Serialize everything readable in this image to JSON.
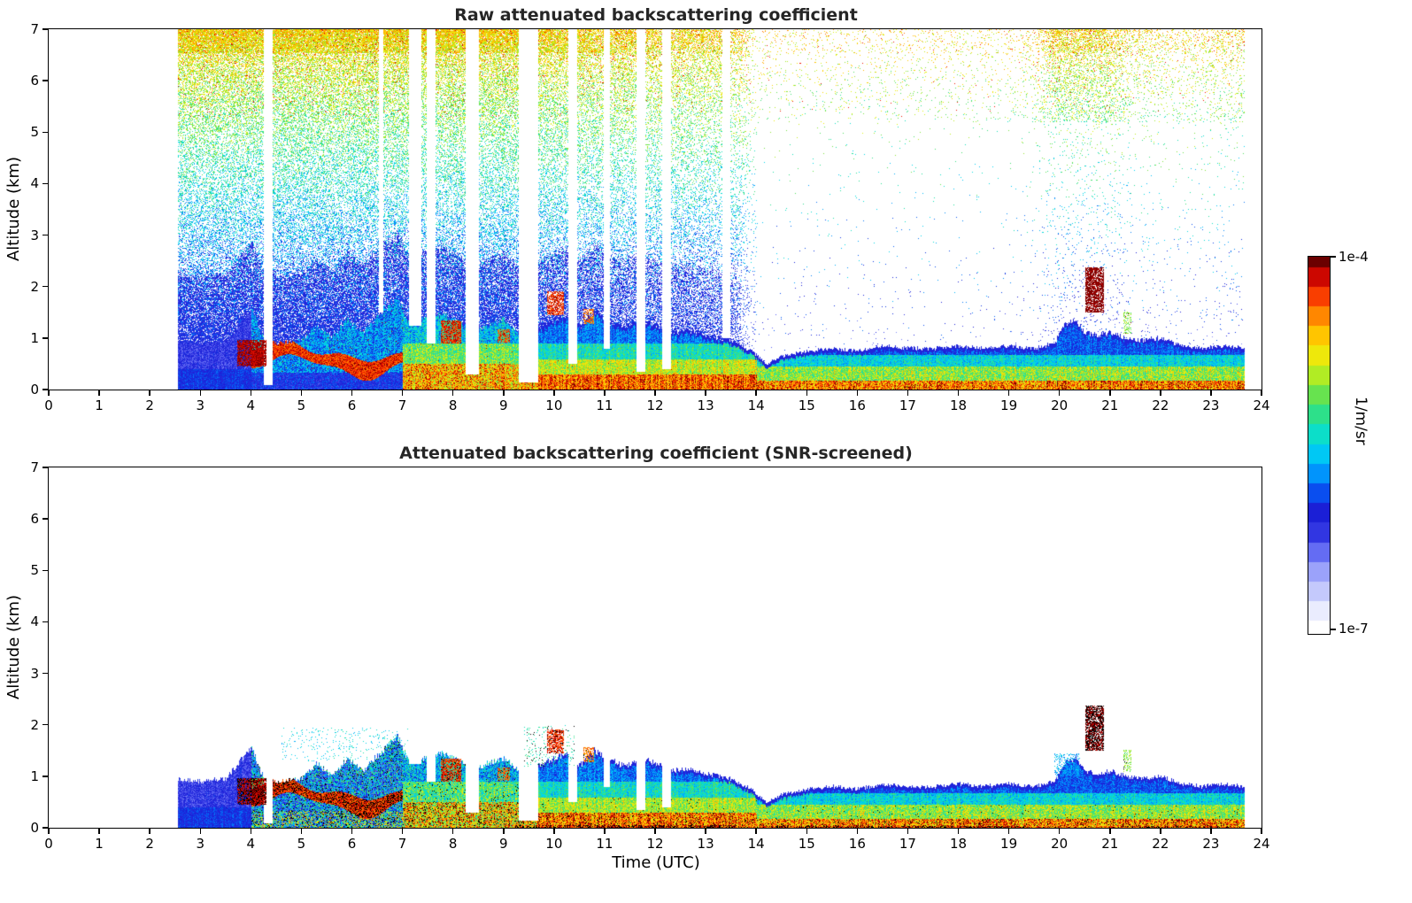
{
  "figure": {
    "background": "#ffffff"
  },
  "panels": [
    {
      "title": "Raw attenuated backscattering coefficient",
      "ylabel": "Altitude (km)",
      "xlabel": ""
    },
    {
      "title": "Attenuated backscattering coefficient (SNR-screened)",
      "ylabel": "Altitude (km)",
      "xlabel": "Time (UTC)"
    }
  ],
  "axes": {
    "x": {
      "min": 0,
      "max": 24,
      "ticks": [
        "0",
        "1",
        "2",
        "3",
        "4",
        "5",
        "6",
        "7",
        "8",
        "9",
        "10",
        "11",
        "12",
        "13",
        "14",
        "15",
        "16",
        "17",
        "18",
        "19",
        "20",
        "21",
        "22",
        "23",
        "24"
      ]
    },
    "y": {
      "min": 0,
      "max": 7,
      "ticks": [
        "0",
        "1",
        "2",
        "3",
        "4",
        "5",
        "6",
        "7"
      ]
    }
  },
  "colorbar": {
    "top_label": "1e-4",
    "bottom_label": "1e-7",
    "axis_label": "1/m/sr",
    "vmin": 1e-07,
    "vmax": 0.0001,
    "levels": 20,
    "stops": [
      [
        0.0,
        "#ffffff"
      ],
      [
        0.05,
        "#eceeff"
      ],
      [
        0.1,
        "#c9cdfd"
      ],
      [
        0.16,
        "#9aa1fa"
      ],
      [
        0.22,
        "#5b63f2"
      ],
      [
        0.27,
        "#2b2fe0"
      ],
      [
        0.32,
        "#1a1ed6"
      ],
      [
        0.37,
        "#0a50f0"
      ],
      [
        0.43,
        "#00a0ff"
      ],
      [
        0.49,
        "#00d8f0"
      ],
      [
        0.55,
        "#15e2b0"
      ],
      [
        0.6,
        "#3fdf70"
      ],
      [
        0.66,
        "#8ce832"
      ],
      [
        0.72,
        "#e8f210"
      ],
      [
        0.78,
        "#ffd000"
      ],
      [
        0.83,
        "#ff9800"
      ],
      [
        0.88,
        "#ff5500"
      ],
      [
        0.92,
        "#f01800"
      ],
      [
        0.96,
        "#bc0000"
      ],
      [
        1.0,
        "#6b0000"
      ]
    ]
  },
  "chart_data": {
    "type": "heatmap",
    "x_range": [
      0,
      24
    ],
    "y_range": [
      0,
      7
    ],
    "xlabel": "Time (UTC)",
    "ylabel": "Altitude (km)",
    "value_units": "1/m/sr",
    "value_scale": {
      "vmin": 1e-07,
      "vmax": 0.0001,
      "log": true
    },
    "data_time_range": [
      2.55,
      23.65
    ],
    "boundary_layer_top_km": [
      [
        2.55,
        0.95
      ],
      [
        3.0,
        0.9
      ],
      [
        3.5,
        0.95
      ],
      [
        3.8,
        1.3
      ],
      [
        4.0,
        1.6
      ],
      [
        4.2,
        1.05
      ],
      [
        4.5,
        0.9
      ],
      [
        5.0,
        0.95
      ],
      [
        5.3,
        1.25
      ],
      [
        5.6,
        1.0
      ],
      [
        5.9,
        1.35
      ],
      [
        6.2,
        1.1
      ],
      [
        6.5,
        1.4
      ],
      [
        6.9,
        1.75
      ],
      [
        7.1,
        1.3
      ],
      [
        7.4,
        1.35
      ],
      [
        7.8,
        1.45
      ],
      [
        8.1,
        1.3
      ],
      [
        8.4,
        1.1
      ],
      [
        8.7,
        1.25
      ],
      [
        9.0,
        1.35
      ],
      [
        9.3,
        1.1
      ],
      [
        9.6,
        1.15
      ],
      [
        9.9,
        1.3
      ],
      [
        10.2,
        1.45
      ],
      [
        10.5,
        1.2
      ],
      [
        10.8,
        1.5
      ],
      [
        11.1,
        1.3
      ],
      [
        11.4,
        1.2
      ],
      [
        11.7,
        1.35
      ],
      [
        12.0,
        1.25
      ],
      [
        12.3,
        1.1
      ],
      [
        12.6,
        1.15
      ],
      [
        13.0,
        1.05
      ],
      [
        13.5,
        0.95
      ],
      [
        13.9,
        0.75
      ],
      [
        14.2,
        0.5
      ],
      [
        14.5,
        0.65
      ],
      [
        15.0,
        0.75
      ],
      [
        15.5,
        0.8
      ],
      [
        16.0,
        0.75
      ],
      [
        16.5,
        0.85
      ],
      [
        17.0,
        0.8
      ],
      [
        17.5,
        0.8
      ],
      [
        18.0,
        0.85
      ],
      [
        18.5,
        0.8
      ],
      [
        19.0,
        0.85
      ],
      [
        19.5,
        0.8
      ],
      [
        19.9,
        0.9
      ],
      [
        20.1,
        1.25
      ],
      [
        20.3,
        1.35
      ],
      [
        20.5,
        1.1
      ],
      [
        20.8,
        1.05
      ],
      [
        21.0,
        1.1
      ],
      [
        21.3,
        1.0
      ],
      [
        21.6,
        0.95
      ],
      [
        22.0,
        1.0
      ],
      [
        22.4,
        0.85
      ],
      [
        22.8,
        0.8
      ],
      [
        23.2,
        0.85
      ],
      [
        23.65,
        0.8
      ]
    ],
    "white_gap_columns": [
      [
        4.25,
        4.42,
        0.1
      ],
      [
        6.53,
        6.62,
        1.5
      ],
      [
        7.12,
        7.36,
        1.25
      ],
      [
        7.48,
        7.64,
        0.9
      ],
      [
        8.24,
        8.5,
        0.3
      ],
      [
        9.3,
        9.68,
        0.15
      ],
      [
        10.27,
        10.45,
        0.5
      ],
      [
        10.97,
        11.1,
        0.8
      ],
      [
        11.63,
        11.8,
        0.35
      ],
      [
        12.13,
        12.3,
        0.4
      ],
      [
        13.32,
        13.48,
        1.0
      ]
    ],
    "noise_density_timeline": [
      [
        2.55,
        0.55
      ],
      [
        8.5,
        0.55
      ],
      [
        9.5,
        0.5
      ],
      [
        11.0,
        0.42
      ],
      [
        12.5,
        0.36
      ],
      [
        13.5,
        0.3
      ],
      [
        14.0,
        0.04
      ],
      [
        19.2,
        0.04
      ],
      [
        19.6,
        0.1
      ],
      [
        19.9,
        0.28
      ],
      [
        20.9,
        0.28
      ],
      [
        21.4,
        0.12
      ],
      [
        22.3,
        0.08
      ],
      [
        23.0,
        0.1
      ],
      [
        23.65,
        0.12
      ]
    ],
    "surface_regimes": [
      {
        "t": [
          2.55,
          4.0
        ],
        "layers": [
          [
            0.4,
            0.34,
            0.05,
            0.0
          ],
          [
            -1,
            0.27,
            0.07,
            0.0
          ]
        ],
        "layers_raw": [
          [
            0.4,
            0.34,
            0.05,
            0.0
          ],
          [
            -1,
            0.27,
            0.07,
            0.0
          ]
        ]
      },
      {
        "t": [
          4.0,
          7.0
        ],
        "band": {
          "c0": 0.6,
          "amp": 0.18,
          "f": 2.0,
          "ph": 3.9,
          "w": 0.14,
          "v": 0.9,
          "black": 0.3
        },
        "layers": [
          [
            0.33,
            0.52,
            0.3,
            0.12
          ],
          [
            -1,
            0.42,
            0.22,
            0.06
          ]
        ],
        "layers_raw": [
          [
            0.33,
            0.32,
            0.08,
            0.0
          ],
          [
            -1,
            0.42,
            0.12,
            0.02
          ]
        ]
      },
      {
        "t": [
          7.0,
          9.65
        ],
        "layers": [
          [
            0.5,
            0.76,
            0.2,
            0.1
          ],
          [
            0.9,
            0.6,
            0.14,
            0.03
          ],
          [
            -1,
            0.45,
            0.14,
            0.01
          ]
        ],
        "layers_raw": [
          [
            0.5,
            0.8,
            0.16,
            0.04
          ],
          [
            0.9,
            0.63,
            0.12,
            0.01
          ],
          [
            -1,
            0.47,
            0.12,
            0.0
          ]
        ]
      },
      {
        "t": [
          9.65,
          14.0
        ],
        "layers": [
          [
            0.3,
            0.85,
            0.14,
            0.06
          ],
          [
            0.6,
            0.68,
            0.1,
            0.01
          ],
          [
            0.9,
            0.53,
            0.1,
            0.0
          ],
          [
            -1,
            0.4,
            0.08,
            0.0
          ]
        ],
        "layers_raw": [
          [
            0.3,
            0.87,
            0.12,
            0.03
          ],
          [
            0.6,
            0.7,
            0.1,
            0.01
          ],
          [
            0.9,
            0.54,
            0.1,
            0.0
          ],
          [
            -1,
            0.4,
            0.08,
            0.0
          ]
        ]
      },
      {
        "t": [
          14.0,
          23.66
        ],
        "layers": [
          [
            0.18,
            0.84,
            0.15,
            0.06
          ],
          [
            0.45,
            0.66,
            0.12,
            0.01
          ],
          [
            0.68,
            0.5,
            0.09,
            0.0
          ],
          [
            -1,
            0.37,
            0.07,
            0.0
          ]
        ],
        "layers_raw": [
          [
            0.18,
            0.85,
            0.14,
            0.03
          ],
          [
            0.45,
            0.66,
            0.12,
            0.0
          ],
          [
            0.68,
            0.5,
            0.09,
            0.0
          ],
          [
            -1,
            0.37,
            0.07,
            0.0
          ]
        ]
      }
    ],
    "features": [
      {
        "t": [
          3.72,
          4.3
        ],
        "z": [
          0.45,
          0.98
        ],
        "kind": "dense-plume",
        "v": 0.93,
        "black": 0.4,
        "density": 0.8
      },
      {
        "t": [
          7.75,
          8.15
        ],
        "z": [
          0.9,
          1.35
        ],
        "kind": "cloud",
        "v": 0.9,
        "black": 0.15,
        "density": 0.75
      },
      {
        "t": [
          8.88,
          9.12
        ],
        "z": [
          0.92,
          1.18
        ],
        "kind": "cloud",
        "v": 0.88,
        "black": 0.1,
        "density": 0.65
      },
      {
        "t": [
          9.85,
          10.18
        ],
        "z": [
          1.45,
          1.92
        ],
        "kind": "cloud",
        "v": 0.9,
        "black": 0.15,
        "density": 0.7
      },
      {
        "t": [
          10.58,
          10.78
        ],
        "z": [
          1.28,
          1.58
        ],
        "kind": "cloud",
        "v": 0.85,
        "black": 0.08,
        "density": 0.55
      },
      {
        "t": [
          20.5,
          20.88
        ],
        "z": [
          1.5,
          2.38
        ],
        "kind": "cloud",
        "v": 0.95,
        "black": 0.45,
        "density": 0.75
      },
      {
        "t": [
          21.25,
          21.42
        ],
        "z": [
          1.1,
          1.52
        ],
        "kind": "cloud",
        "v": 0.65,
        "black": 0.05,
        "density": 0.4
      },
      {
        "t": [
          4.6,
          7.1
        ],
        "z": [
          1.3,
          1.95
        ],
        "kind": "speckle",
        "v": 0.5,
        "black": 0.0,
        "density": 0.05,
        "panel": "screened"
      },
      {
        "t": [
          9.4,
          10.4
        ],
        "z": [
          1.2,
          2.0
        ],
        "kind": "speckle",
        "v": 0.55,
        "black": 0.15,
        "density": 0.1,
        "panel": "screened"
      },
      {
        "t": [
          19.9,
          20.4
        ],
        "z": [
          1.0,
          1.45
        ],
        "kind": "speckle",
        "v": 0.45,
        "black": 0.0,
        "density": 0.3,
        "panel": "screened"
      },
      {
        "t": [
          9.2,
          13.8
        ],
        "z": [
          0.0,
          0.06
        ],
        "kind": "surface-marks",
        "v": 0.9,
        "black": 0.95,
        "density": 0.28,
        "panel": "screened"
      },
      {
        "t": [
          14.2,
          19.3
        ],
        "z": [
          0.0,
          0.05
        ],
        "kind": "surface-marks",
        "v": 0.9,
        "black": 0.95,
        "density": 0.3,
        "panel": "screened"
      },
      {
        "t": [
          20.9,
          23.4
        ],
        "z": [
          0.0,
          0.05
        ],
        "kind": "surface-marks",
        "v": 0.9,
        "black": 0.9,
        "density": 0.2,
        "panel": "screened"
      }
    ]
  }
}
